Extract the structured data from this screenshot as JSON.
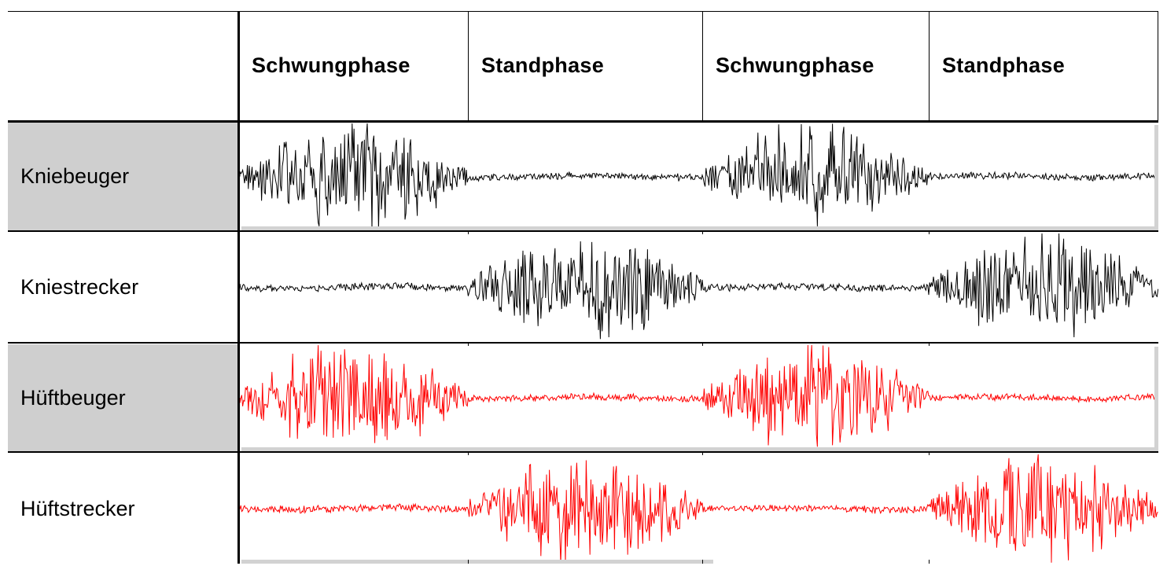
{
  "columns": [
    {
      "label": ""
    },
    {
      "label": "Schwungphase"
    },
    {
      "label": "Standphase"
    },
    {
      "label": "Schwungphase"
    },
    {
      "label": "Standphase"
    }
  ],
  "rows": [
    {
      "label": "Kniebeuger",
      "shaded": true,
      "color": "#000000",
      "active_phases": [
        "Schwungphase"
      ]
    },
    {
      "label": "Kniestrecker",
      "shaded": false,
      "color": "#000000",
      "active_phases": [
        "Standphase"
      ]
    },
    {
      "label": "Hüftbeuger",
      "shaded": true,
      "color": "#ff0000",
      "active_phases": [
        "Schwungphase"
      ]
    },
    {
      "label": "Hüftstrecker",
      "shaded": false,
      "color": "#ff0000",
      "active_phases": [
        "Standphase"
      ]
    }
  ]
}
